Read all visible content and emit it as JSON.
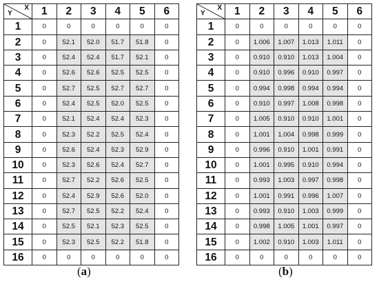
{
  "panels": [
    {
      "caption_letter": "a",
      "x_axis_label": "X",
      "y_axis_label": "Y",
      "columns": [
        "1",
        "2",
        "3",
        "4",
        "5",
        "6"
      ],
      "rows": [
        {
          "y": "1",
          "values": [
            "0",
            "0",
            "0",
            "0",
            "0",
            "0"
          ]
        },
        {
          "y": "2",
          "values": [
            "0",
            "52.1",
            "52.0",
            "51.7",
            "51.8",
            "0"
          ]
        },
        {
          "y": "3",
          "values": [
            "0",
            "52.4",
            "52.4",
            "51.7",
            "52.1",
            "0"
          ]
        },
        {
          "y": "4",
          "values": [
            "0",
            "52.6",
            "52.6",
            "52.5",
            "52.5",
            "0"
          ]
        },
        {
          "y": "5",
          "values": [
            "0",
            "52.7",
            "52.5",
            "52.7",
            "52.7",
            "0"
          ]
        },
        {
          "y": "6",
          "values": [
            "0",
            "52.4",
            "52.5",
            "52.0",
            "52.5",
            "0"
          ]
        },
        {
          "y": "7",
          "values": [
            "0",
            "52.1",
            "52.4",
            "52.4",
            "52.3",
            "0"
          ]
        },
        {
          "y": "8",
          "values": [
            "0",
            "52.3",
            "52.2",
            "52.5",
            "52.4",
            "0"
          ]
        },
        {
          "y": "9",
          "values": [
            "0",
            "52.6",
            "52.4",
            "52.3",
            "52.9",
            "0"
          ]
        },
        {
          "y": "10",
          "values": [
            "0",
            "52.3",
            "52.6",
            "52.4",
            "52.7",
            "0"
          ]
        },
        {
          "y": "11",
          "values": [
            "0",
            "52.7",
            "52.2",
            "52.6",
            "52.5",
            "0"
          ]
        },
        {
          "y": "12",
          "values": [
            "0",
            "52.4",
            "52.9",
            "52.6",
            "52.0",
            "0"
          ]
        },
        {
          "y": "13",
          "values": [
            "0",
            "52.7",
            "52.5",
            "52.2",
            "52.4",
            "0"
          ]
        },
        {
          "y": "14",
          "values": [
            "0",
            "52.5",
            "52.1",
            "52.3",
            "52.5",
            "0"
          ]
        },
        {
          "y": "15",
          "values": [
            "0",
            "52.3",
            "52.5",
            "52.2",
            "51.8",
            "0"
          ]
        },
        {
          "y": "16",
          "values": [
            "0",
            "0",
            "0",
            "0",
            "0",
            "0"
          ]
        }
      ]
    },
    {
      "caption_letter": "b",
      "x_axis_label": "X",
      "y_axis_label": "Y",
      "columns": [
        "1",
        "2",
        "3",
        "4",
        "5",
        "6"
      ],
      "rows": [
        {
          "y": "1",
          "values": [
            "0",
            "0",
            "0",
            "0",
            "0",
            "0"
          ]
        },
        {
          "y": "2",
          "values": [
            "0",
            "1.006",
            "1.007",
            "1.013",
            "1.011",
            "0"
          ]
        },
        {
          "y": "3",
          "values": [
            "0",
            "0.910",
            "0.910",
            "1.013",
            "1.004",
            "0"
          ]
        },
        {
          "y": "4",
          "values": [
            "0",
            "0.910",
            "0.996",
            "0.910",
            "0.997",
            "0"
          ]
        },
        {
          "y": "5",
          "values": [
            "0",
            "0.994",
            "0.998",
            "0.994",
            "0.994",
            "0"
          ]
        },
        {
          "y": "6",
          "values": [
            "0",
            "0.910",
            "0.997",
            "1.008",
            "0.998",
            "0"
          ]
        },
        {
          "y": "7",
          "values": [
            "0",
            "1.005",
            "0.910",
            "0.910",
            "1.001",
            "0"
          ]
        },
        {
          "y": "8",
          "values": [
            "0",
            "1.001",
            "1.004",
            "0.998",
            "0.999",
            "0"
          ]
        },
        {
          "y": "9",
          "values": [
            "0",
            "0.996",
            "0.910",
            "1.001",
            "0.991",
            "0"
          ]
        },
        {
          "y": "10",
          "values": [
            "0",
            "1.001",
            "0.995",
            "0.910",
            "0.994",
            "0"
          ]
        },
        {
          "y": "11",
          "values": [
            "0",
            "0.993",
            "1.003",
            "0.997",
            "0.998",
            "0"
          ]
        },
        {
          "y": "12",
          "values": [
            "0",
            "1.001",
            "0.991",
            "0.996",
            "1.007",
            "0"
          ]
        },
        {
          "y": "13",
          "values": [
            "0",
            "0.993",
            "0.910",
            "1.003",
            "0.999",
            "0"
          ]
        },
        {
          "y": "14",
          "values": [
            "0",
            "0.998",
            "1.005",
            "1.001",
            "0.997",
            "0"
          ]
        },
        {
          "y": "15",
          "values": [
            "0",
            "1.002",
            "0.910",
            "1.003",
            "1.011",
            "0"
          ]
        },
        {
          "y": "16",
          "values": [
            "0",
            "0",
            "0",
            "0",
            "0",
            "0"
          ]
        }
      ]
    }
  ],
  "colors": {
    "shaded_cell": "#e4e4e4",
    "border": "#222222"
  }
}
